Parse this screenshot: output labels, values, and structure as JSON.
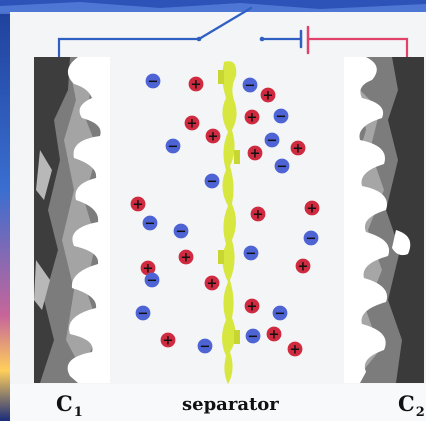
{
  "labels": {
    "electrode_left_letter": "C",
    "electrode_left_sub": "1",
    "separator": "separator",
    "electrode_right_letter": "C",
    "electrode_right_sub": "2"
  },
  "ions": {
    "positive_symbol": "+",
    "negative_symbol": "−"
  },
  "colors": {
    "wire_blue": "#2f5fc3",
    "wire_red": "#e0426a",
    "cation": "#cf2a3f",
    "anion": "#4e63d4",
    "separator": "#d8e640",
    "electrode_dark": "#3d3d3d",
    "electrode_light": "#9c9c9c",
    "pore_white": "#ffffff"
  }
}
